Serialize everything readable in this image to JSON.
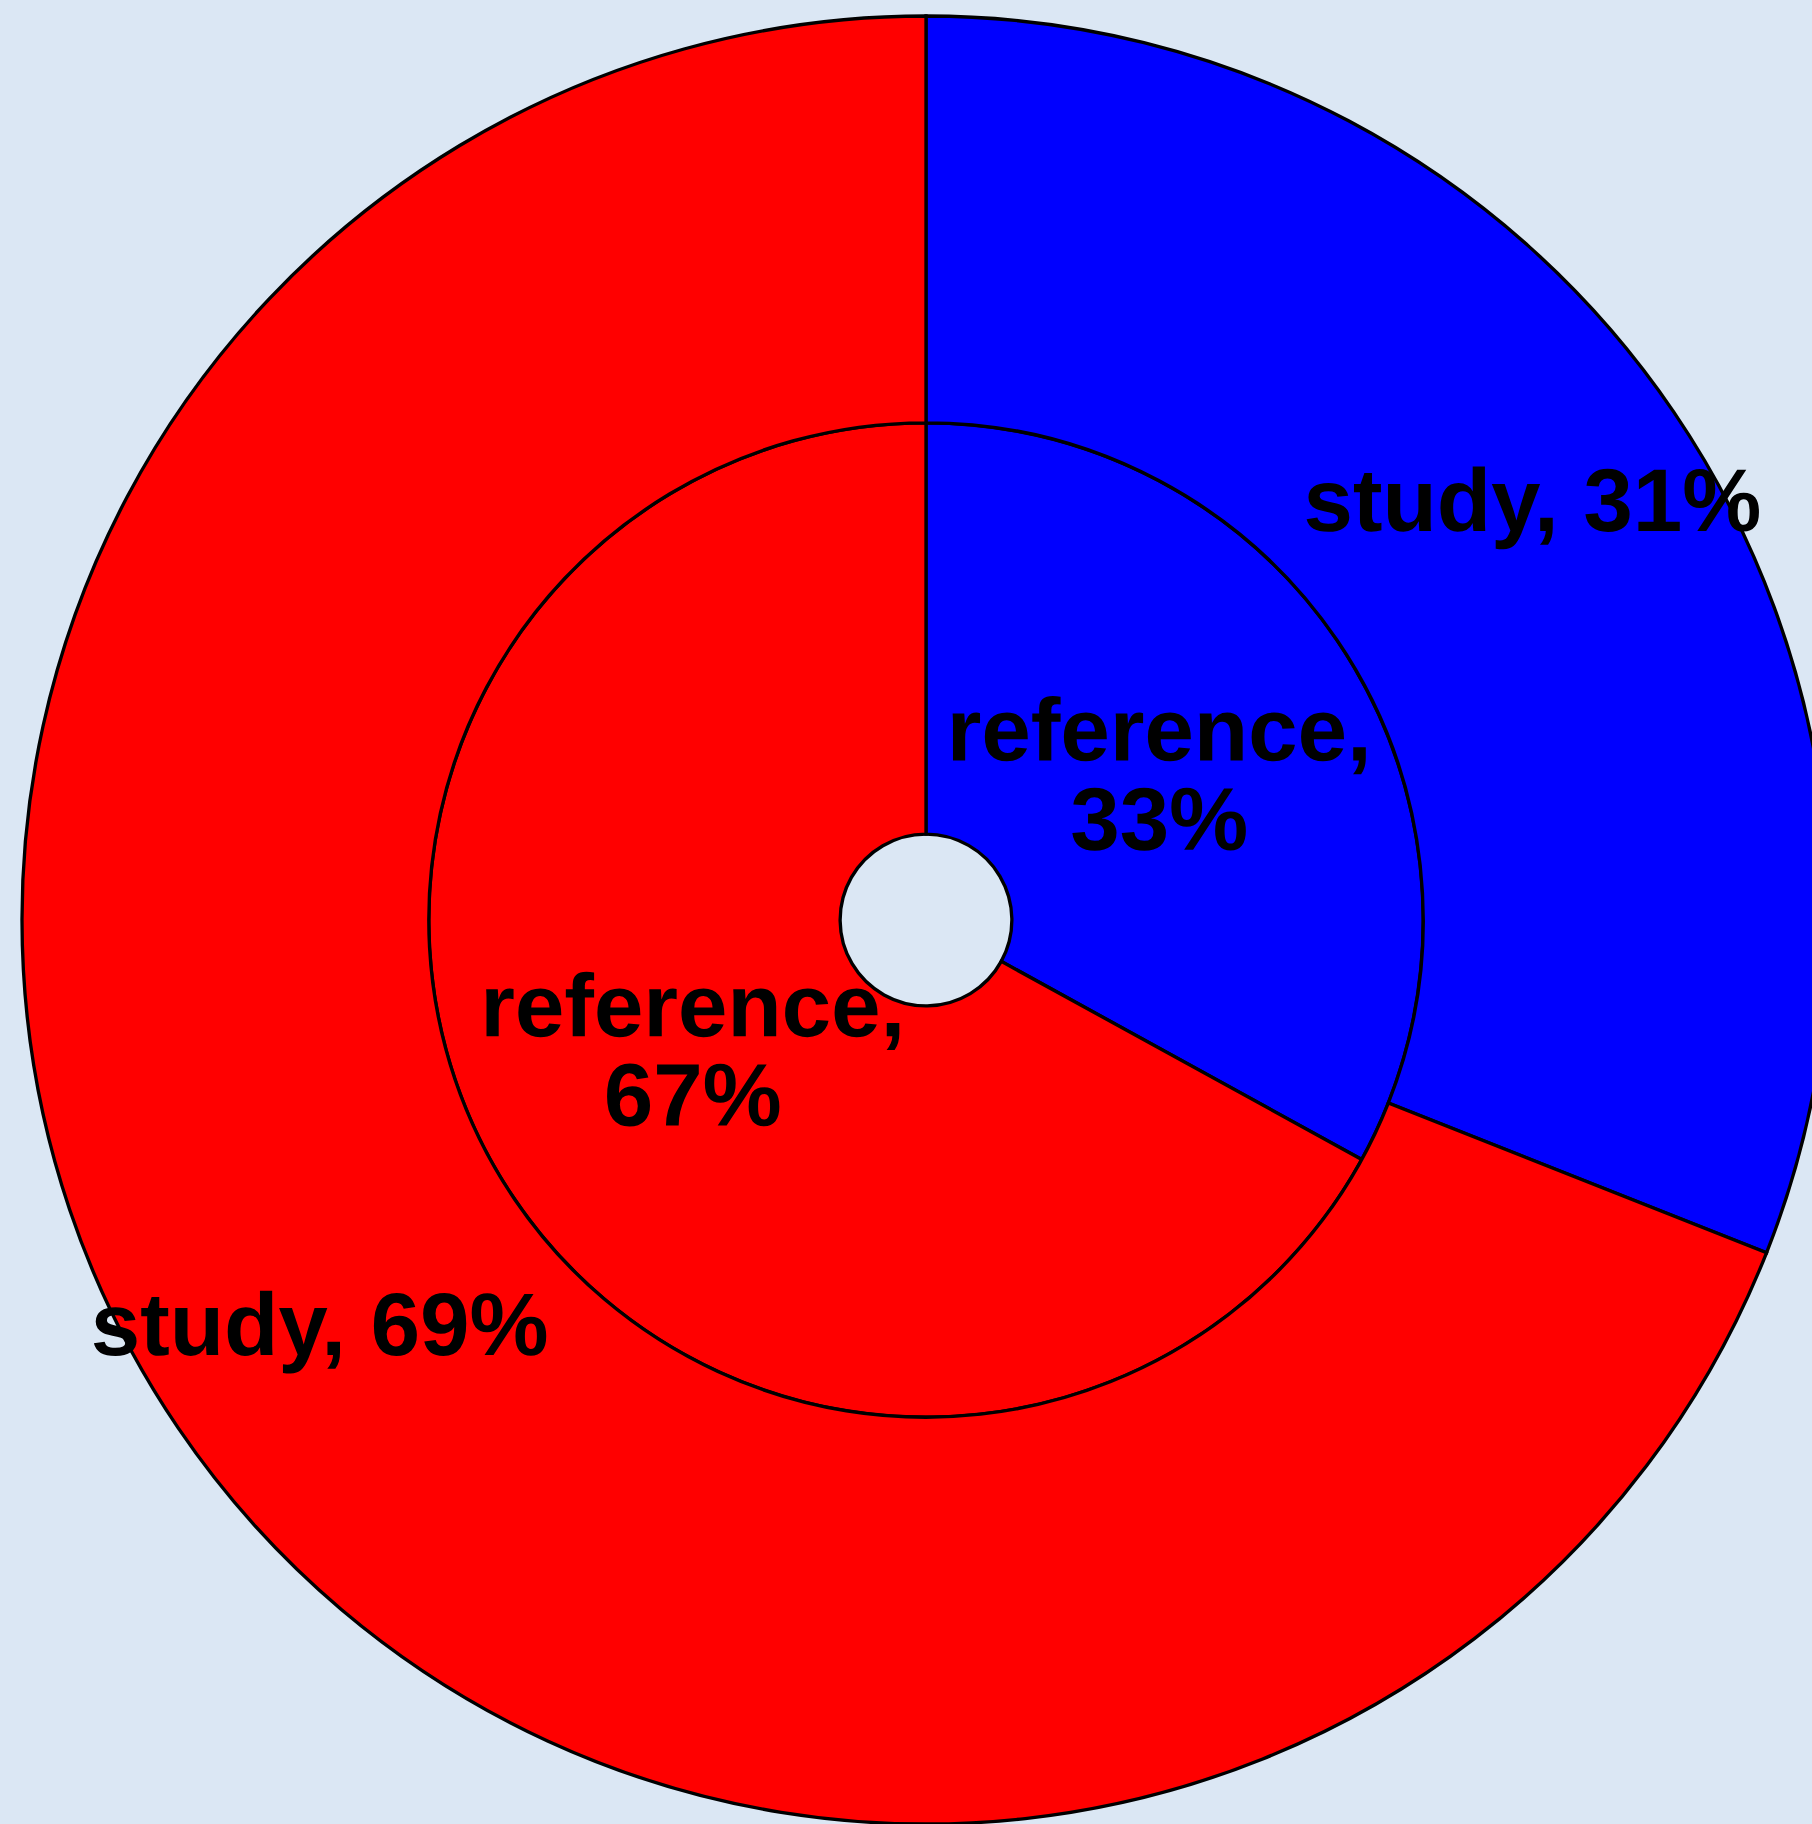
{
  "chart_data": {
    "type": "donut",
    "series": [
      {
        "values": [
          33,
          67
        ],
        "colors": [
          "#0000ff",
          "#ff0000"
        ],
        "value_labels": [
          "reference,\n33%",
          "reference,\n67%"
        ]
      },
      {
        "values": [
          31,
          69
        ],
        "colors": [
          "#0000ff",
          "#ff0000"
        ],
        "value_labels": [
          "study, 31%",
          "study, 69%"
        ]
      }
    ]
  }
}
